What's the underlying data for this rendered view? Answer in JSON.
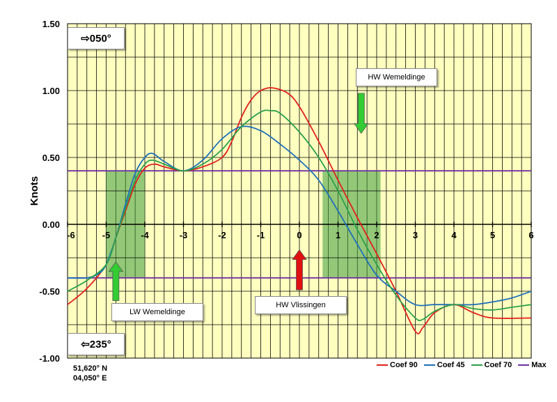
{
  "chart_data": {
    "type": "line",
    "title": "",
    "xlabel": "",
    "ylabel": "Knots",
    "xlim": [
      -6,
      6
    ],
    "ylim": [
      -1.0,
      1.5
    ],
    "x_tick_labels": [
      "-6",
      "-5",
      "-4",
      "-3",
      "-2",
      "-1",
      "0",
      "1",
      "2",
      "3",
      "4",
      "5",
      "6"
    ],
    "y_tick_labels": [
      "1.50",
      "1.00",
      "0.50",
      "0.00",
      "-0.50",
      "-1.00"
    ],
    "grid": true,
    "legend_position": "bottom-right",
    "series": [
      {
        "name": "Coef 90",
        "color": "#e0201b",
        "points": [
          [
            -6,
            -0.6
          ],
          [
            -5.5,
            -0.48
          ],
          [
            -5,
            -0.3
          ],
          [
            -4.75,
            -0.1
          ],
          [
            -4.5,
            0.1
          ],
          [
            -4.25,
            0.3
          ],
          [
            -4,
            0.42
          ],
          [
            -3.75,
            0.45
          ],
          [
            -3.5,
            0.43
          ],
          [
            -3,
            0.4
          ],
          [
            -2.5,
            0.43
          ],
          [
            -2,
            0.5
          ],
          [
            -1.75,
            0.62
          ],
          [
            -1.5,
            0.8
          ],
          [
            -1.25,
            0.93
          ],
          [
            -1,
            1.0
          ],
          [
            -0.7,
            1.02
          ],
          [
            -0.3,
            0.98
          ],
          [
            0,
            0.88
          ],
          [
            0.5,
            0.62
          ],
          [
            1,
            0.33
          ],
          [
            1.5,
            0.05
          ],
          [
            2,
            -0.22
          ],
          [
            2.5,
            -0.5
          ],
          [
            3,
            -0.8
          ],
          [
            3.2,
            -0.77
          ],
          [
            3.5,
            -0.66
          ],
          [
            4,
            -0.6
          ],
          [
            4.5,
            -0.66
          ],
          [
            5,
            -0.7
          ],
          [
            6,
            -0.7
          ]
        ]
      },
      {
        "name": "Coef 45",
        "color": "#1e6fb8",
        "points": [
          [
            -6,
            -0.4
          ],
          [
            -5.5,
            -0.4
          ],
          [
            -5.2,
            -0.37
          ],
          [
            -5,
            -0.3
          ],
          [
            -4.75,
            -0.1
          ],
          [
            -4.5,
            0.15
          ],
          [
            -4.25,
            0.38
          ],
          [
            -4,
            0.5
          ],
          [
            -3.8,
            0.53
          ],
          [
            -3.5,
            0.47
          ],
          [
            -3,
            0.4
          ],
          [
            -2.5,
            0.48
          ],
          [
            -2,
            0.64
          ],
          [
            -1.5,
            0.73
          ],
          [
            -1,
            0.7
          ],
          [
            -0.5,
            0.6
          ],
          [
            0,
            0.48
          ],
          [
            0.5,
            0.33
          ],
          [
            1,
            0.1
          ],
          [
            1.5,
            -0.15
          ],
          [
            2,
            -0.38
          ],
          [
            2.5,
            -0.5
          ],
          [
            3,
            -0.6
          ],
          [
            3.5,
            -0.6
          ],
          [
            4,
            -0.6
          ],
          [
            4.5,
            -0.6
          ],
          [
            5,
            -0.58
          ],
          [
            5.5,
            -0.55
          ],
          [
            6,
            -0.5
          ]
        ]
      },
      {
        "name": "Coef 70",
        "color": "#2ba04b",
        "points": [
          [
            -6,
            -0.5
          ],
          [
            -5.5,
            -0.42
          ],
          [
            -5,
            -0.3
          ],
          [
            -4.75,
            -0.1
          ],
          [
            -4.5,
            0.12
          ],
          [
            -4.25,
            0.33
          ],
          [
            -4,
            0.45
          ],
          [
            -3.8,
            0.48
          ],
          [
            -3.5,
            0.45
          ],
          [
            -3,
            0.4
          ],
          [
            -2.5,
            0.45
          ],
          [
            -2,
            0.56
          ],
          [
            -1.5,
            0.73
          ],
          [
            -1,
            0.84
          ],
          [
            -0.75,
            0.85
          ],
          [
            -0.5,
            0.83
          ],
          [
            0,
            0.69
          ],
          [
            0.5,
            0.5
          ],
          [
            1,
            0.25
          ],
          [
            1.5,
            -0.04
          ],
          [
            2,
            -0.3
          ],
          [
            2.5,
            -0.53
          ],
          [
            3,
            -0.7
          ],
          [
            3.2,
            -0.71
          ],
          [
            3.5,
            -0.65
          ],
          [
            4,
            -0.6
          ],
          [
            4.5,
            -0.63
          ],
          [
            5,
            -0.64
          ],
          [
            5.5,
            -0.62
          ],
          [
            6,
            -0.6
          ]
        ]
      },
      {
        "name": "Max",
        "color": "#7030a0",
        "points": [
          [
            -6,
            0.4
          ],
          [
            6,
            0.4
          ]
        ],
        "points_lower": [
          [
            -6,
            -0.4
          ],
          [
            6,
            -0.4
          ]
        ]
      }
    ],
    "shaded_regions": [
      {
        "x_from": -5.0,
        "x_to": -4.0,
        "y_from": -0.4,
        "y_to": 0.4,
        "color": "#3c9a3c"
      },
      {
        "x_from": 0.6,
        "x_to": 2.1,
        "y_from": -0.4,
        "y_to": 0.4,
        "color": "#3c9a3c"
      }
    ],
    "arrows": [
      {
        "x": 1.6,
        "y_from": 0.98,
        "y_to": 0.68,
        "color": "#33cc33"
      },
      {
        "x": -4.75,
        "y_from": -0.57,
        "y_to": -0.28,
        "color": "#33cc33"
      },
      {
        "x": 0.0,
        "y_from": -0.49,
        "y_to": -0.19,
        "color": "#e01010"
      }
    ]
  },
  "labels": {
    "direction_flood": "⇨050°",
    "direction_ebb": "⇦235°",
    "hw_wemeldinge": "HW Wemeldinge",
    "lw_wemeldinge": "LW Wemeldinge",
    "hw_vlissingen": "HW Vlissingen",
    "lat": "51,620° N",
    "lon": "04,050° E"
  },
  "colors": {
    "plot_background": "#ffffc0",
    "shade": "#3c9a3c"
  }
}
